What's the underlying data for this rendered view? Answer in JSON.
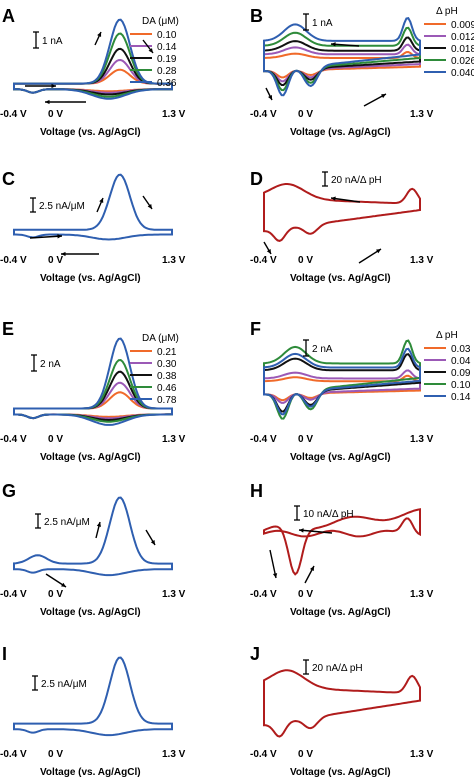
{
  "chart_data": [
    {
      "panel": "A",
      "type": "line",
      "xlabel": "Voltage (vs. Ag/AgCl)",
      "xticks": [
        "-0.4 V",
        "0 V",
        "1.3 V"
      ],
      "scale": "1 nA",
      "legend_title": "DA (μM)",
      "series": [
        {
          "name": "0.10",
          "color": "#f06a2a",
          "peak": 0.2
        },
        {
          "name": "0.14",
          "color": "#9b59b6",
          "peak": 0.34
        },
        {
          "name": "0.19",
          "color": "#111111",
          "peak": 0.5
        },
        {
          "name": "0.28",
          "color": "#2e8b3a",
          "peak": 0.72
        },
        {
          "name": "0.36",
          "color": "#2f5fb0",
          "peak": 0.92
        }
      ]
    },
    {
      "panel": "B",
      "type": "line",
      "xlabel": "Voltage (vs. Ag/AgCl)",
      "xticks": [
        "-0.4 V",
        "0 V",
        "1.3 V"
      ],
      "scale": "1 nA",
      "legend_title": "Δ pH",
      "series": [
        {
          "name": "0.009",
          "color": "#f06a2a",
          "amp": 0.25
        },
        {
          "name": "0.012",
          "color": "#9b59b6",
          "amp": 0.4
        },
        {
          "name": "0.018",
          "color": "#111111",
          "amp": 0.55
        },
        {
          "name": "0.026",
          "color": "#2e8b3a",
          "amp": 0.75
        },
        {
          "name": "0.040",
          "color": "#2f5fb0",
          "amp": 0.95
        }
      ]
    },
    {
      "panel": "C",
      "type": "line",
      "xlabel": "Voltage (vs. Ag/AgCl)",
      "xticks": [
        "-0.4 V",
        "0 V",
        "1.3 V"
      ],
      "scale": "2.5 nA/μM",
      "series": [
        {
          "name": "",
          "color": "#2f5fb0"
        }
      ]
    },
    {
      "panel": "D",
      "type": "line",
      "xlabel": "Voltage (vs. Ag/AgCl)",
      "xticks": [
        "-0.4 V",
        "0 V",
        "1.3 V"
      ],
      "scale": "20 nA/Δ pH",
      "series": [
        {
          "name": "",
          "color": "#b01c1c"
        }
      ]
    },
    {
      "panel": "E",
      "type": "line",
      "xlabel": "Voltage (vs. Ag/AgCl)",
      "xticks": [
        "-0.4 V",
        "0 V",
        "1.3 V"
      ],
      "scale": "2 nA",
      "legend_title": "DA (μM)",
      "series": [
        {
          "name": "0.21",
          "color": "#f06a2a",
          "peak": 0.22
        },
        {
          "name": "0.30",
          "color": "#9b59b6",
          "peak": 0.35
        },
        {
          "name": "0.38",
          "color": "#111111",
          "peak": 0.5
        },
        {
          "name": "0.46",
          "color": "#2e8b3a",
          "peak": 0.66
        },
        {
          "name": "0.78",
          "color": "#2f5fb0",
          "peak": 0.95
        }
      ]
    },
    {
      "panel": "F",
      "type": "line",
      "xlabel": "Voltage (vs. Ag/AgCl)",
      "xticks": [
        "-0.4 V",
        "0 V",
        "1.3 V"
      ],
      "scale": "2 nA",
      "legend_title": "Δ pH",
      "series": [
        {
          "name": "0.03",
          "color": "#f06a2a",
          "amp": 0.2
        },
        {
          "name": "0.04",
          "color": "#9b59b6",
          "amp": 0.3
        },
        {
          "name": "0.09",
          "color": "#111111",
          "amp": 0.6
        },
        {
          "name": "0.10",
          "color": "#2e8b3a",
          "amp": 0.85
        },
        {
          "name": "0.14",
          "color": "#2f5fb0",
          "amp": 0.7
        }
      ]
    },
    {
      "panel": "G",
      "type": "line",
      "xlabel": "Voltage (vs. Ag/AgCl)",
      "xticks": [
        "-0.4 V",
        "0 V",
        "1.3 V"
      ],
      "scale": "2.5 nA/μM",
      "series": [
        {
          "name": "",
          "color": "#2f5fb0"
        }
      ]
    },
    {
      "panel": "H",
      "type": "line",
      "xlabel": "Voltage (vs. Ag/AgCl)",
      "xticks": [
        "-0.4 V",
        "0 V",
        "1.3 V"
      ],
      "scale": "10 nA/Δ pH",
      "series": [
        {
          "name": "",
          "color": "#b01c1c"
        }
      ]
    },
    {
      "panel": "I",
      "type": "line",
      "xlabel": "Voltage (vs. Ag/AgCl)",
      "xticks": [
        "-0.4 V",
        "0 V",
        "1.3 V"
      ],
      "scale": "2.5 nA/μM",
      "series": [
        {
          "name": "",
          "color": "#2f5fb0"
        }
      ]
    },
    {
      "panel": "J",
      "type": "line",
      "xlabel": "Voltage (vs. Ag/AgCl)",
      "xticks": [
        "-0.4 V",
        "0 V",
        "1.3 V"
      ],
      "scale": "20 nA/Δ pH",
      "series": [
        {
          "name": "",
          "color": "#b01c1c"
        }
      ]
    }
  ]
}
